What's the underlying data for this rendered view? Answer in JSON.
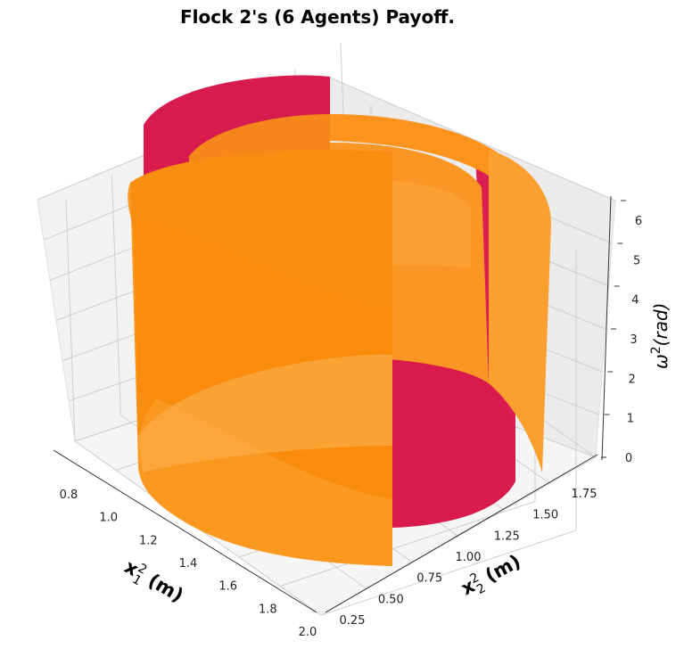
{
  "chart_data": {
    "type": "surface3d",
    "title": "Flock 2's (6 Agents) Payoff.",
    "axes": {
      "x": {
        "label_main": "x",
        "label_sub": "1",
        "label_sup": "2",
        "label_unit": " (m)",
        "ticks": [
          "0.8",
          "1.0",
          "1.2",
          "1.4",
          "1.6",
          "1.8",
          "2.0"
        ],
        "range": [
          0.7,
          2.0
        ]
      },
      "y": {
        "label_main": "x",
        "label_sub": "2",
        "label_sup": "2",
        "label_unit": " (m)",
        "ticks": [
          "0.25",
          "0.50",
          "0.75",
          "1.00",
          "1.25",
          "1.50",
          "1.75"
        ],
        "range": [
          0.1,
          1.9
        ]
      },
      "z": {
        "label_main": "ω",
        "label_sup": "2",
        "label_unit": "(rad)",
        "ticks": [
          "0",
          "1",
          "2",
          "3",
          "4",
          "5",
          "6"
        ],
        "range": [
          0,
          6.3
        ]
      }
    },
    "grid": true,
    "series": [
      {
        "color": "#dc143c",
        "surface": "cylinder",
        "center_x": 1.35,
        "center_y": 1.0,
        "radius": 0.45,
        "z_range": [
          0,
          6.28
        ]
      },
      {
        "color": "#ff8c00",
        "surface": "cylinder",
        "center_x": 1.35,
        "center_y": 1.0,
        "radius": 0.6,
        "z_range": [
          0,
          6.28
        ]
      }
    ]
  }
}
